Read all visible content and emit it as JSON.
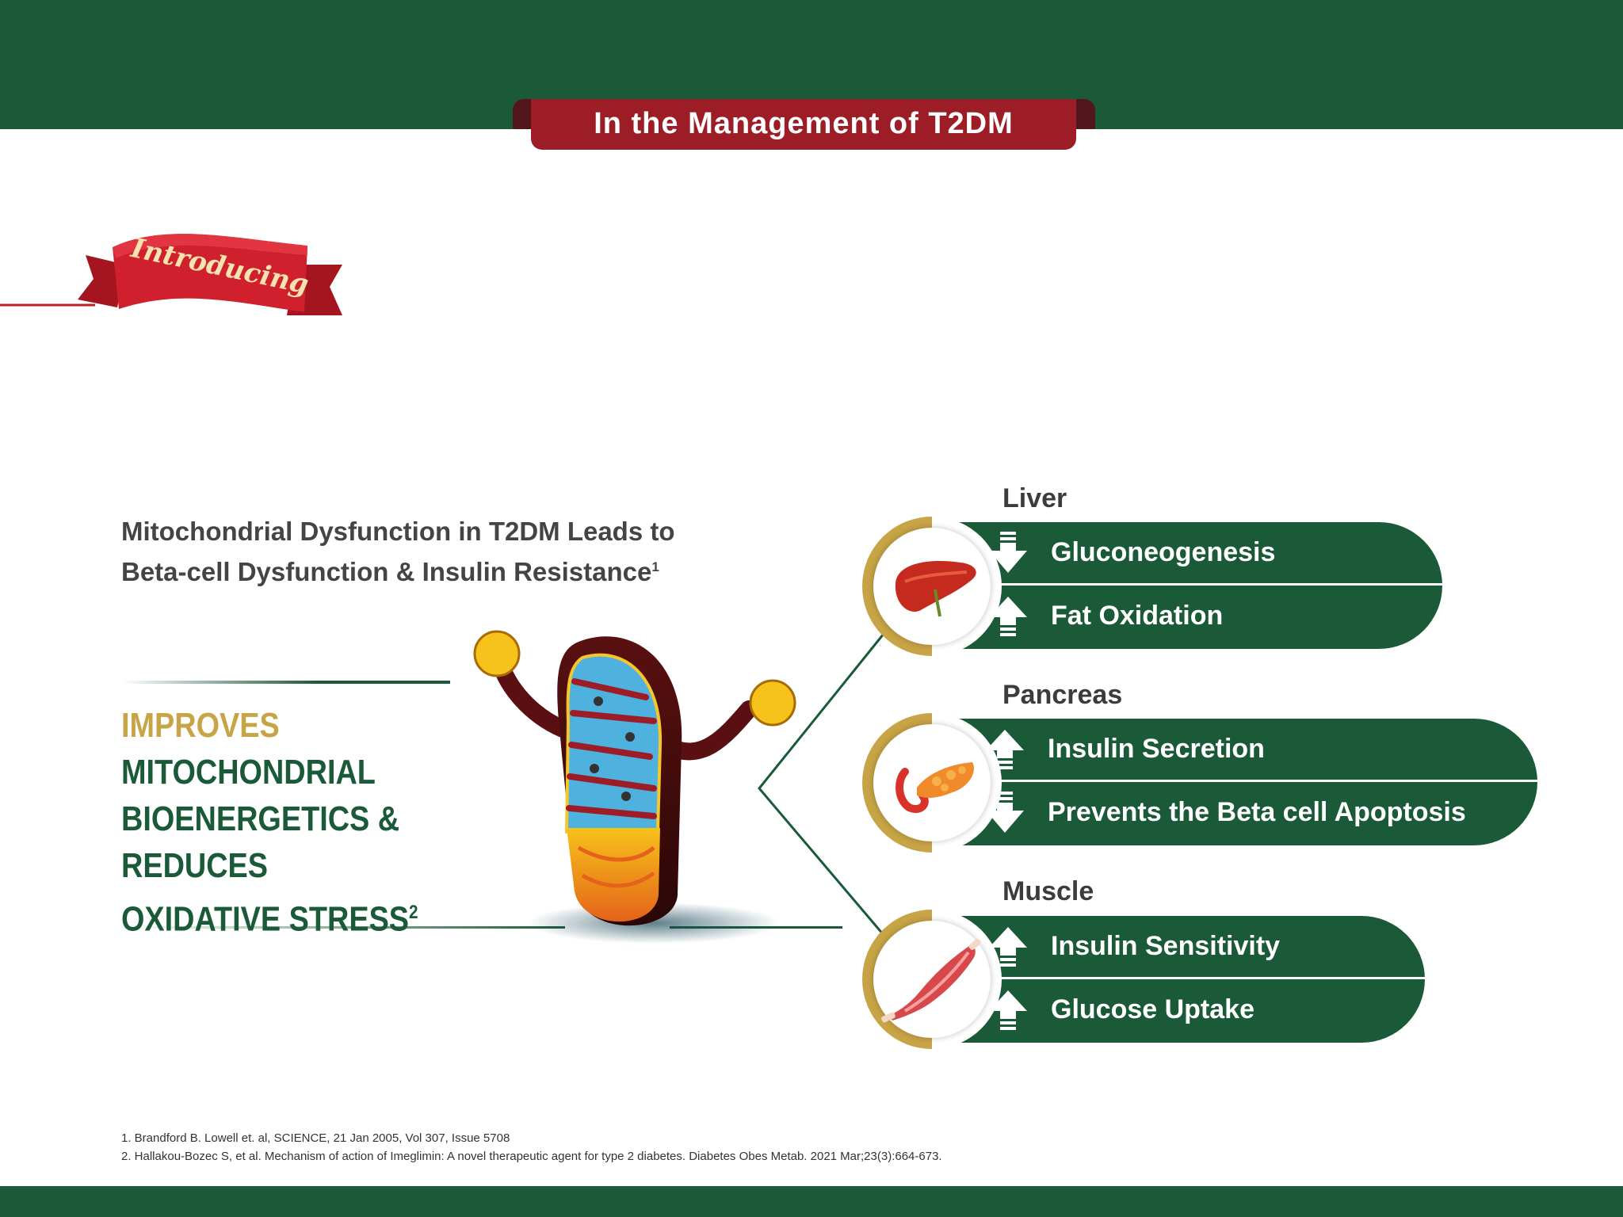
{
  "header": {
    "title": "In the Management of T2DM"
  },
  "banner": {
    "text": "Introducing"
  },
  "subtitle": {
    "line1": "Mitochondrial Dysfunction in T2DM Leads to",
    "line2": "Beta-cell Dysfunction & Insulin Resistance",
    "sup": "1"
  },
  "claim": {
    "line1": "IMPROVES",
    "line2": "MITOCHONDRIAL",
    "line3": "BIOENERGETICS & REDUCES",
    "line4": "OXIDATIVE STRESS",
    "sup": "2"
  },
  "organs": [
    {
      "name": "Liver",
      "icon": "liver-icon",
      "effects": [
        {
          "text": "Gluconeogenesis",
          "direction": "down"
        },
        {
          "text": "Fat Oxidation",
          "direction": "up"
        }
      ]
    },
    {
      "name": "Pancreas",
      "icon": "pancreas-icon",
      "effects": [
        {
          "text": "Insulin Secretion",
          "direction": "up"
        },
        {
          "text": "Prevents the Beta cell Apoptosis",
          "direction": "down"
        }
      ]
    },
    {
      "name": "Muscle",
      "icon": "muscle-icon",
      "effects": [
        {
          "text": "Insulin Sensitivity",
          "direction": "up"
        },
        {
          "text": "Glucose Uptake",
          "direction": "up"
        }
      ]
    }
  ],
  "references": [
    "1. Brandford B. Lowell et. al, SCIENCE, 21 Jan 2005, Vol 307, Issue 5708",
    "2. Hallakou-Bozec S, et al. Mechanism of action of Imeglimin: A novel therapeutic agent for type 2 diabetes. Diabetes Obes Metab. 2021 Mar;23(3):664-673."
  ],
  "colors": {
    "green": "#1a5a38",
    "red": "#9d1d27",
    "gold": "#c7a446",
    "text": "#444444"
  }
}
